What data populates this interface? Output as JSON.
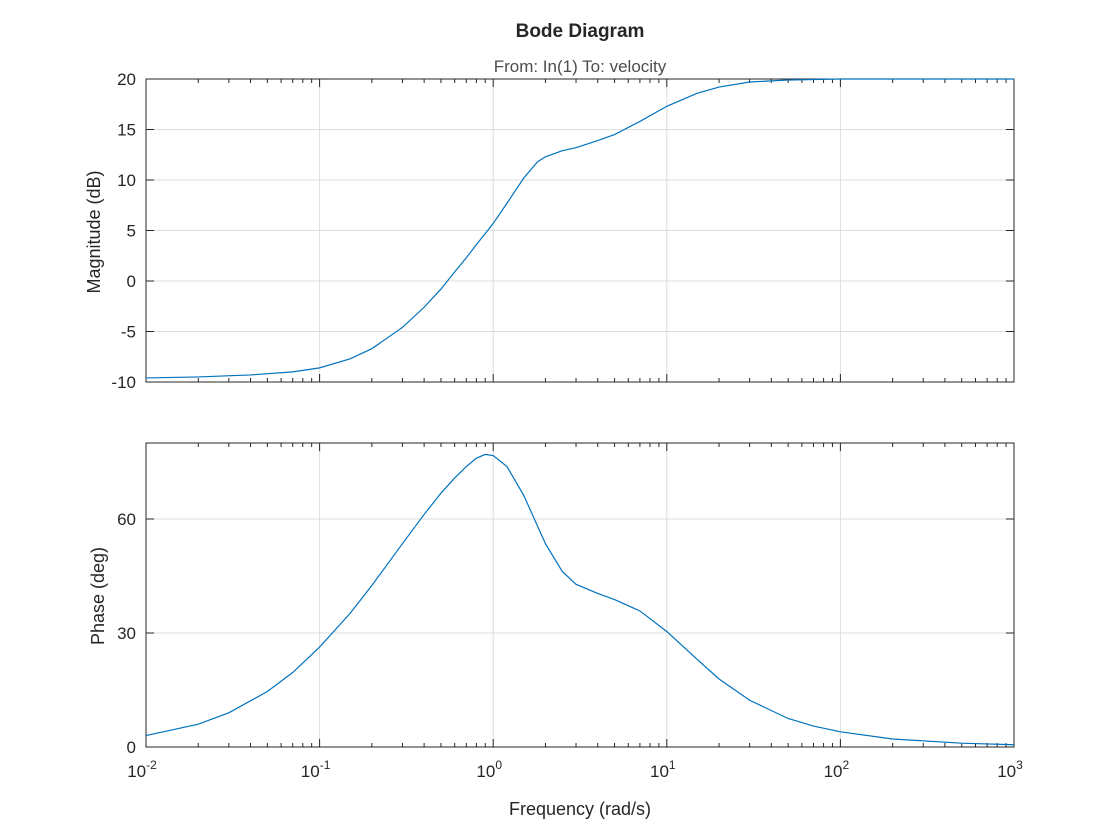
{
  "chart_data": {
    "type": "line",
    "title": "Bode Diagram",
    "subtitle": "From: In(1)  To: velocity",
    "xlabel": "Frequency (rad/s)",
    "x_scale": "log",
    "xlim": [
      0.01,
      1000
    ],
    "x_tick_labels": [
      {
        "base": "10",
        "exp": "-2"
      },
      {
        "base": "10",
        "exp": "-1"
      },
      {
        "base": "10",
        "exp": "0"
      },
      {
        "base": "10",
        "exp": "1"
      },
      {
        "base": "10",
        "exp": "2"
      },
      {
        "base": "10",
        "exp": "3"
      }
    ],
    "grid": true,
    "color": "#0072BD",
    "panels": [
      {
        "ylabel": "Magnitude (dB)",
        "ylim": [
          -10,
          20
        ],
        "yticks": [
          -10,
          -5,
          0,
          5,
          10,
          15,
          20
        ],
        "ytick_labels": [
          "-10",
          "-5",
          "0",
          "5",
          "10",
          "15",
          "20"
        ],
        "series": [
          {
            "x": [
              0.01,
              0.02,
              0.04,
              0.07,
              0.1,
              0.15,
              0.2,
              0.3,
              0.4,
              0.5,
              0.6,
              0.7,
              0.8,
              0.9,
              1.0,
              1.2,
              1.5,
              1.8,
              2.0,
              2.5,
              3.0,
              4.0,
              5.0,
              7.0,
              10,
              15,
              20,
              30,
              50,
              100,
              200,
              500,
              1000
            ],
            "y": [
              -9.6,
              -9.5,
              -9.3,
              -9.0,
              -8.6,
              -7.7,
              -6.7,
              -4.6,
              -2.6,
              -0.8,
              0.9,
              2.3,
              3.6,
              4.7,
              5.7,
              7.7,
              10.2,
              11.8,
              12.3,
              12.9,
              13.2,
              13.9,
              14.5,
              15.8,
              17.3,
              18.6,
              19.2,
              19.7,
              19.9,
              20.0,
              20.0,
              20.0,
              20.0
            ]
          }
        ]
      },
      {
        "ylabel": "Phase (deg)",
        "ylim": [
          0,
          80
        ],
        "yticks": [
          0,
          30,
          60
        ],
        "ytick_labels": [
          "0",
          "30",
          "60"
        ],
        "series": [
          {
            "x": [
              0.01,
              0.02,
              0.03,
              0.05,
              0.07,
              0.1,
              0.15,
              0.2,
              0.3,
              0.4,
              0.5,
              0.6,
              0.7,
              0.8,
              0.9,
              1.0,
              1.2,
              1.5,
              2.0,
              2.5,
              3.0,
              4.0,
              5.0,
              7.0,
              10,
              15,
              20,
              30,
              50,
              70,
              100,
              200,
              500,
              1000
            ],
            "y": [
              3.0,
              6.0,
              9.0,
              14.6,
              19.6,
              26.3,
              35.2,
              42.5,
              53.5,
              61.2,
              66.8,
              70.8,
              73.8,
              76.0,
              77.0,
              76.7,
              73.8,
              66.2,
              53.5,
              46.2,
              42.8,
              40.4,
              38.8,
              35.8,
              30.4,
              23.0,
              17.9,
              12.3,
              7.5,
              5.5,
              4.0,
              2.1,
              1.0,
              0.6
            ]
          }
        ]
      }
    ]
  }
}
